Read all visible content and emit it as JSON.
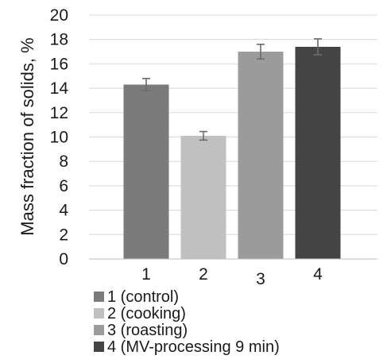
{
  "chart_data": {
    "type": "bar",
    "categories": [
      "1",
      "2",
      "3",
      "4"
    ],
    "values": [
      14.3,
      10.1,
      17.0,
      17.4
    ],
    "errors": [
      0.5,
      0.35,
      0.6,
      0.65
    ],
    "colors": [
      "#7b7b7b",
      "#c0c0c0",
      "#9b9b9b",
      "#444444"
    ],
    "title": "",
    "xlabel": "",
    "ylabel": "Mass fraction of solids, %",
    "ylim": [
      0,
      20
    ],
    "yticks": [
      0,
      2,
      4,
      6,
      8,
      10,
      12,
      14,
      16,
      18,
      20
    ],
    "grid": true,
    "legend": {
      "placement": "bottom-left",
      "entries": [
        "1 (control)",
        "2 (cooking)",
        "3 (roasting)",
        "4 (MV-processing 9 min)"
      ]
    }
  }
}
